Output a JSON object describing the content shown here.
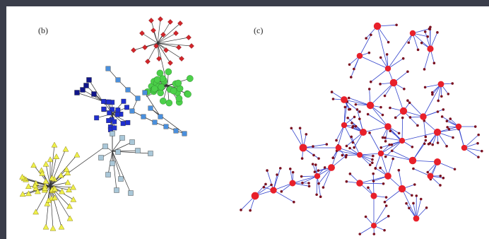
{
  "panels": [
    {
      "label": "(b)"
    },
    {
      "label": "(c)"
    }
  ],
  "colors": {
    "frame_border": "#3a3d4a",
    "background": "#ffffff",
    "red_cluster": "#d2262b",
    "green_cluster": "#4cd04a",
    "navy_cluster": "#10168a",
    "blue_cluster": "#1f2ed0",
    "skyblue_cluster": "#4a8fdc",
    "lightblue_cluster": "#a9c7d8",
    "yellow_cluster": "#eef04a",
    "edge_dark": "#333333",
    "c_node_red": "#e8202a",
    "c_node_dark": "#7a1020",
    "c_edge_blue": "#3344cc"
  }
}
